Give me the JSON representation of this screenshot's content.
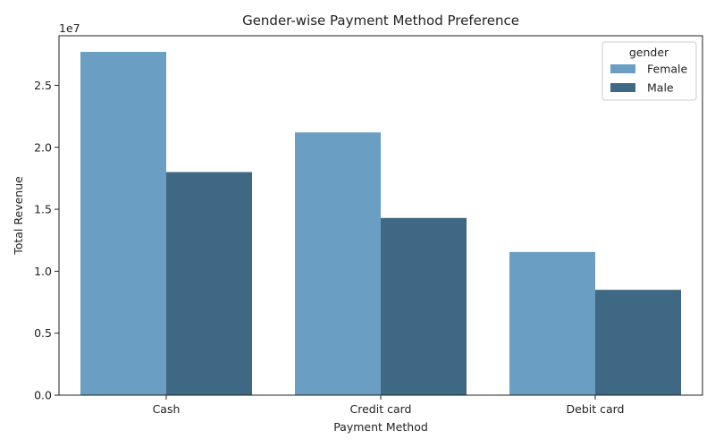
{
  "chart_data": {
    "type": "bar",
    "title": "Gender-wise Payment Method Preference",
    "xlabel": "Payment Method",
    "ylabel": "Total Revenue",
    "y_offset_label": "1e7",
    "categories": [
      "Cash",
      "Credit card",
      "Debit card"
    ],
    "series": [
      {
        "name": "Female",
        "color": "#6a9ec2",
        "values": [
          27700000,
          21200000,
          11550000
        ]
      },
      {
        "name": "Male",
        "color": "#3f6884",
        "values": [
          18000000,
          14300000,
          8500000
        ]
      }
    ],
    "ylim": [
      0,
      29000000
    ],
    "yticks": [
      {
        "value": 0,
        "label": "0.0"
      },
      {
        "value": 5000000,
        "label": "0.5"
      },
      {
        "value": 10000000,
        "label": "1.0"
      },
      {
        "value": 15000000,
        "label": "1.5"
      },
      {
        "value": 20000000,
        "label": "2.0"
      },
      {
        "value": 25000000,
        "label": "2.5"
      }
    ],
    "grid": false,
    "legend": {
      "title": "gender",
      "placement": "top-right"
    }
  }
}
